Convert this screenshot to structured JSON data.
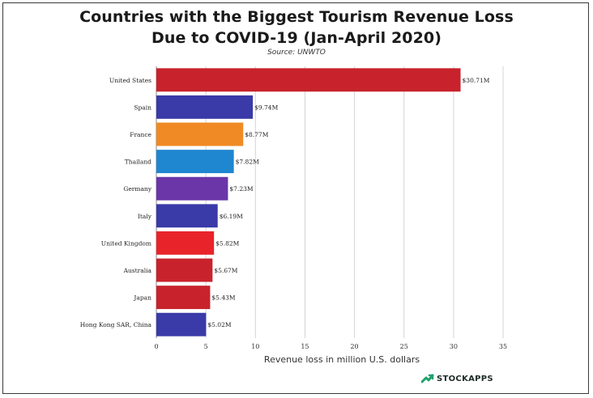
{
  "header": {
    "title_line1": "Countries with the Biggest Tourism Revenue Loss",
    "title_line2": "Due to COVID-19 (Jan-April 2020)",
    "source": "Source: UNWTO"
  },
  "brand": {
    "name": "STOCKAPPS",
    "icon": "stockapps-logo-icon",
    "color": "#1fa26b"
  },
  "chart_data": {
    "type": "bar",
    "orientation": "horizontal",
    "title": "Countries with the Biggest Tourism Revenue Loss Due to COVID-19 (Jan-April 2020)",
    "xlabel": "Revenue loss in million U.S. dollars",
    "ylabel": "",
    "xlim": [
      0,
      35
    ],
    "xticks": [
      0,
      5,
      10,
      15,
      20,
      25,
      30,
      35
    ],
    "grid": "vertical",
    "categories": [
      "United States",
      "Spain",
      "France",
      "Thailand",
      "Germany",
      "Italy",
      "United Kingdom",
      "Australia",
      "Japan",
      "Hong Kong SAR, China"
    ],
    "values": [
      30.71,
      9.74,
      8.77,
      7.82,
      7.23,
      6.19,
      5.82,
      5.67,
      5.43,
      5.02
    ],
    "data_labels": [
      "$30.71M",
      "$9.74M",
      "$8.77M",
      "$7.82M",
      "$7.23M",
      "$6.19M",
      "$5.82M",
      "$5.67M",
      "$5.43M",
      "$5.02M"
    ],
    "colors": [
      "#c8232c",
      "#3a3aa8",
      "#f08a24",
      "#1f86d0",
      "#6a36a8",
      "#3a3aa8",
      "#e8242a",
      "#c8232c",
      "#c8232c",
      "#3a3aa8"
    ]
  }
}
